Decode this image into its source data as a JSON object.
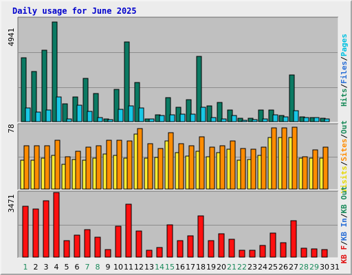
{
  "chart_data": {
    "type": "bar",
    "title": "Daily usage for June 2025",
    "categories": [
      "1",
      "2",
      "3",
      "4",
      "5",
      "6",
      "7",
      "8",
      "9",
      "10",
      "11",
      "12",
      "13",
      "14",
      "15",
      "16",
      "17",
      "18",
      "19",
      "20",
      "21",
      "22",
      "23",
      "24",
      "25",
      "26",
      "27",
      "28",
      "29",
      "30",
      "31"
    ],
    "weekend_days": [
      "1",
      "7",
      "8",
      "14",
      "15",
      "21",
      "22",
      "28",
      "29"
    ],
    "day_colors": {
      "weekday": "#000000",
      "weekend": "#1a8a5a"
    },
    "panels": [
      {
        "name": "hits-files-pages",
        "ymax_label": "4941",
        "ylim": [
          0,
          4941
        ],
        "series": [
          {
            "name": "Hits",
            "color": "#0b7a63",
            "values": [
              3040,
              2380,
              3410,
              4760,
              840,
              1170,
              2050,
              1330,
              140,
              1540,
              3810,
              1860,
              140,
              340,
              1130,
              690,
              1050,
              3120,
              740,
              930,
              560,
              150,
              150,
              570,
              570,
              280,
              2240,
              230,
              210,
              150,
              0
            ]
          },
          {
            "name": "Files",
            "color": "#19c7e6",
            "values": [
              670,
              450,
              550,
              1190,
              140,
              780,
              480,
              200,
              110,
              590,
              760,
              640,
              130,
              300,
              340,
              370,
              370,
              700,
              180,
              140,
              290,
              60,
              90,
              120,
              330,
              230,
              510,
              190,
              180,
              130,
              0
            ]
          },
          {
            "name": "Pages",
            "color": "#00c0ff",
            "values": []
          }
        ],
        "legend": [
          {
            "text": "Hits",
            "color": "#1a8a5a"
          },
          {
            "text": "/",
            "color": "#000000"
          },
          {
            "text": "Files",
            "color": "#2a6fd6"
          },
          {
            "text": "/",
            "color": "#000000"
          },
          {
            "text": "Pages",
            "color": "#00c0e0"
          }
        ]
      },
      {
        "name": "visits-sites",
        "ymax_label": "78",
        "ylim": [
          0,
          78
        ],
        "series": [
          {
            "name": "Visits",
            "color": "#ffee33",
            "values": [
              35,
              35,
              37,
              41,
              30,
              36,
              35,
              37,
              42,
              41,
              37,
              66,
              37,
              38,
              58,
              44,
              40,
              46,
              39,
              44,
              48,
              35,
              36,
              41,
              62,
              62,
              62,
              37,
              37,
              37,
              0
            ]
          },
          {
            "name": "Sites",
            "color": "#ff8c00",
            "values": [
              52,
              52,
              52,
              59,
              39,
              46,
              51,
              52,
              59,
              59,
              58,
              73,
              55,
              49,
              68,
              55,
              52,
              63,
              51,
              52,
              58,
              49,
              48,
              51,
              74,
              74,
              75,
              39,
              47,
              51,
              0
            ]
          }
        ],
        "legend": [
          {
            "text": "Visits",
            "color": "#e6d800"
          },
          {
            "text": "/",
            "color": "#000000"
          },
          {
            "text": "Sites",
            "color": "#ff8c00"
          },
          {
            "text": "/",
            "color": "#000000"
          },
          {
            "text": "Out",
            "color": "#1a8a5a"
          }
        ]
      },
      {
        "name": "kbytes",
        "ymax_label": "3471",
        "ylim": [
          0,
          3471
        ],
        "series": [
          {
            "name": "KB F",
            "color": "#ff1010",
            "values": [
              2720,
              2560,
              2980,
              3440,
              890,
              1170,
              1470,
              1070,
              420,
              1640,
              2800,
              1390,
              380,
              510,
              1700,
              880,
              1120,
              2200,
              870,
              1230,
              960,
              380,
              380,
              620,
              1270,
              780,
              1950,
              460,
              440,
              400,
              0
            ]
          }
        ],
        "legend": [
          {
            "text": "KB F",
            "color": "#e01010"
          },
          {
            "text": "/",
            "color": "#000000"
          },
          {
            "text": "KB In",
            "color": "#2a6fd6"
          },
          {
            "text": "/",
            "color": "#000000"
          },
          {
            "text": "KB Out",
            "color": "#1a8a5a"
          }
        ]
      }
    ],
    "grid": true,
    "legend_position": "right"
  }
}
